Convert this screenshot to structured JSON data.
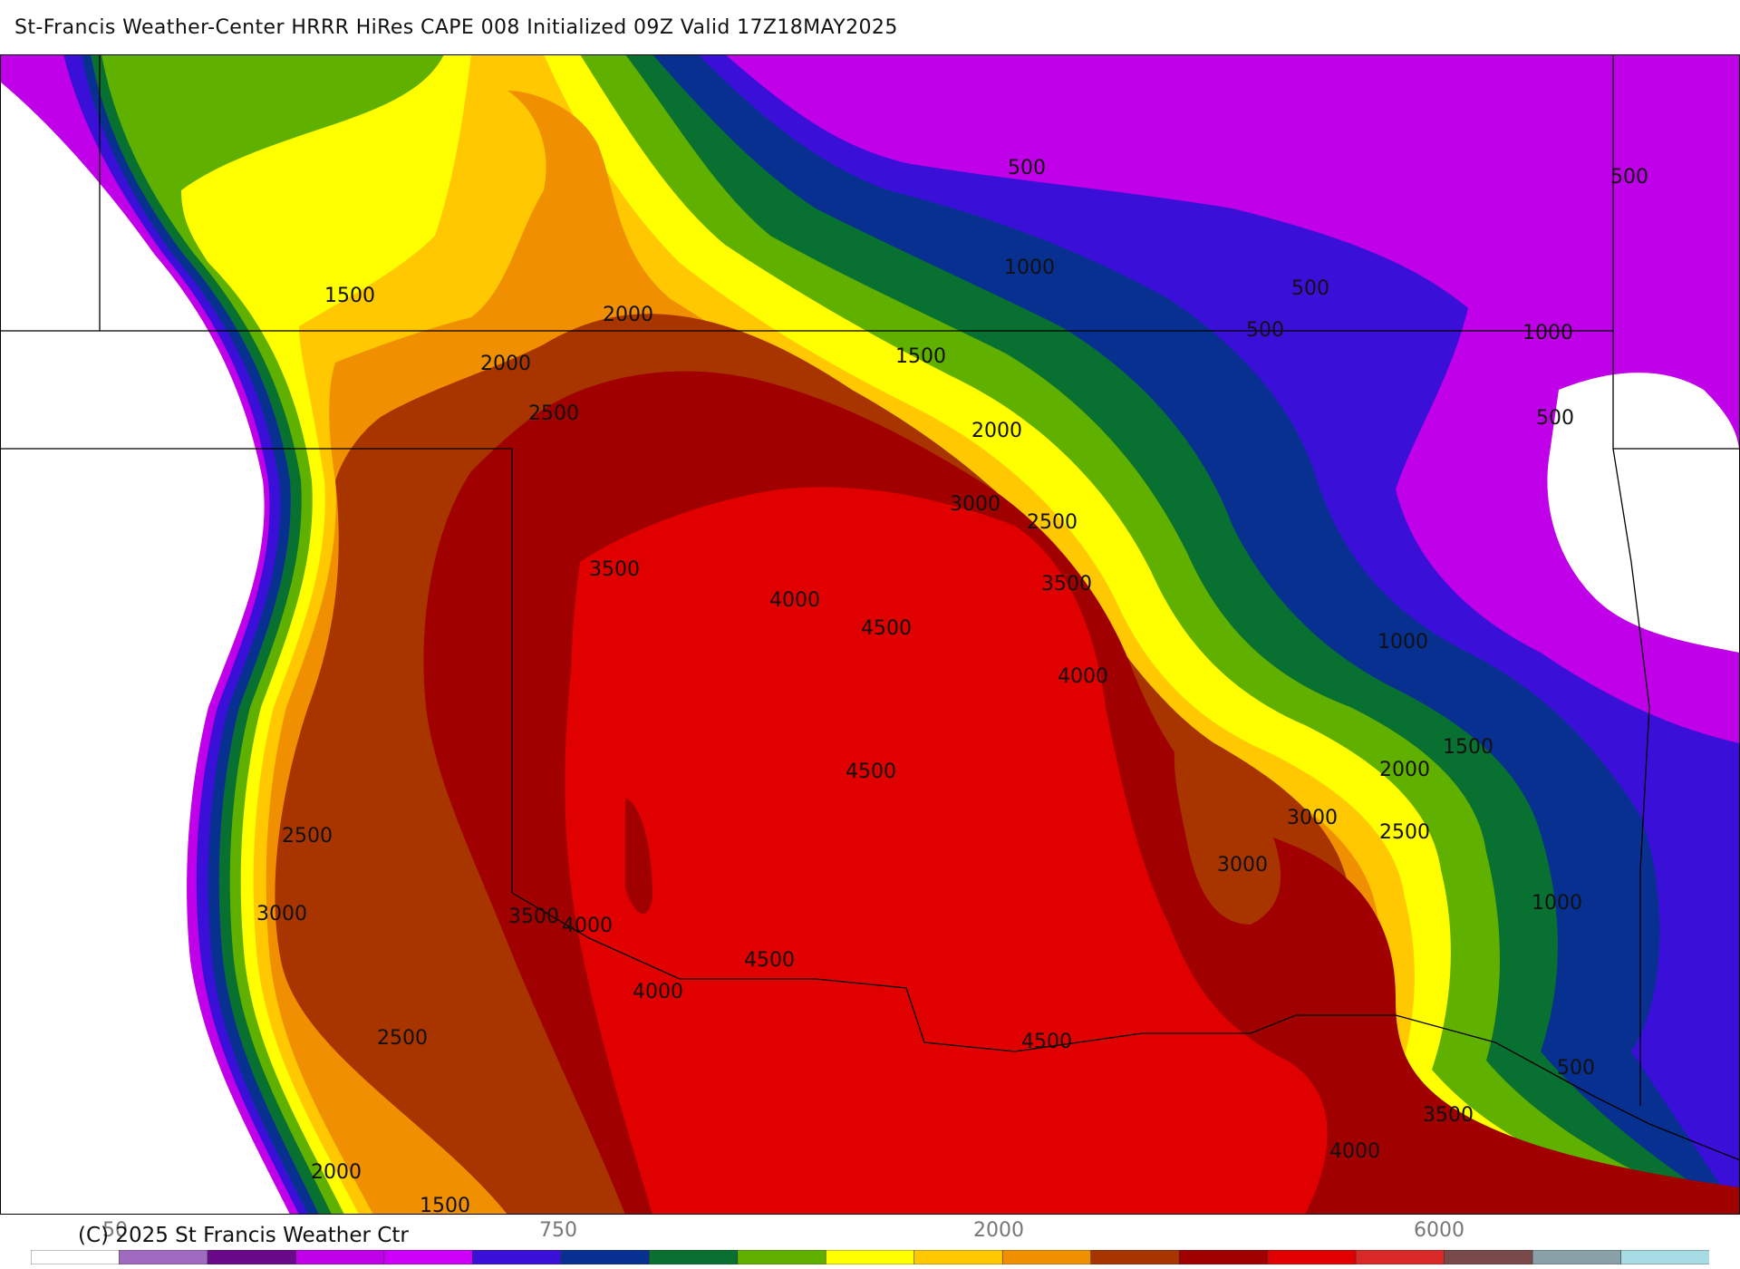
{
  "header": {
    "title": "St-Francis Weather-Center HRRR HiRes CAPE  008 Initialized  09Z Valid 17Z18MAY2025"
  },
  "footer": {
    "copyright": "(C) 2025 St Francis Weather Ctr",
    "colorbar_ticks": [
      "50",
      "750",
      "2000",
      "6000"
    ]
  },
  "legend": {
    "colors": [
      "#ffffff",
      "#a06ac0",
      "#6a0a8a",
      "#c000e8",
      "#cc00f8",
      "#3a10d8",
      "#083090",
      "#087030",
      "#60b000",
      "#ffff00",
      "#ffc800",
      "#f09000",
      "#a83400",
      "#a00000",
      "#e00000",
      "#d82828",
      "#7a4a4a",
      "#8aa0a8",
      "#a8dce4"
    ]
  },
  "map": {
    "contour_labels": [
      "500",
      "1000",
      "1500",
      "2000",
      "2500",
      "3000",
      "3500",
      "4000",
      "4500"
    ]
  }
}
